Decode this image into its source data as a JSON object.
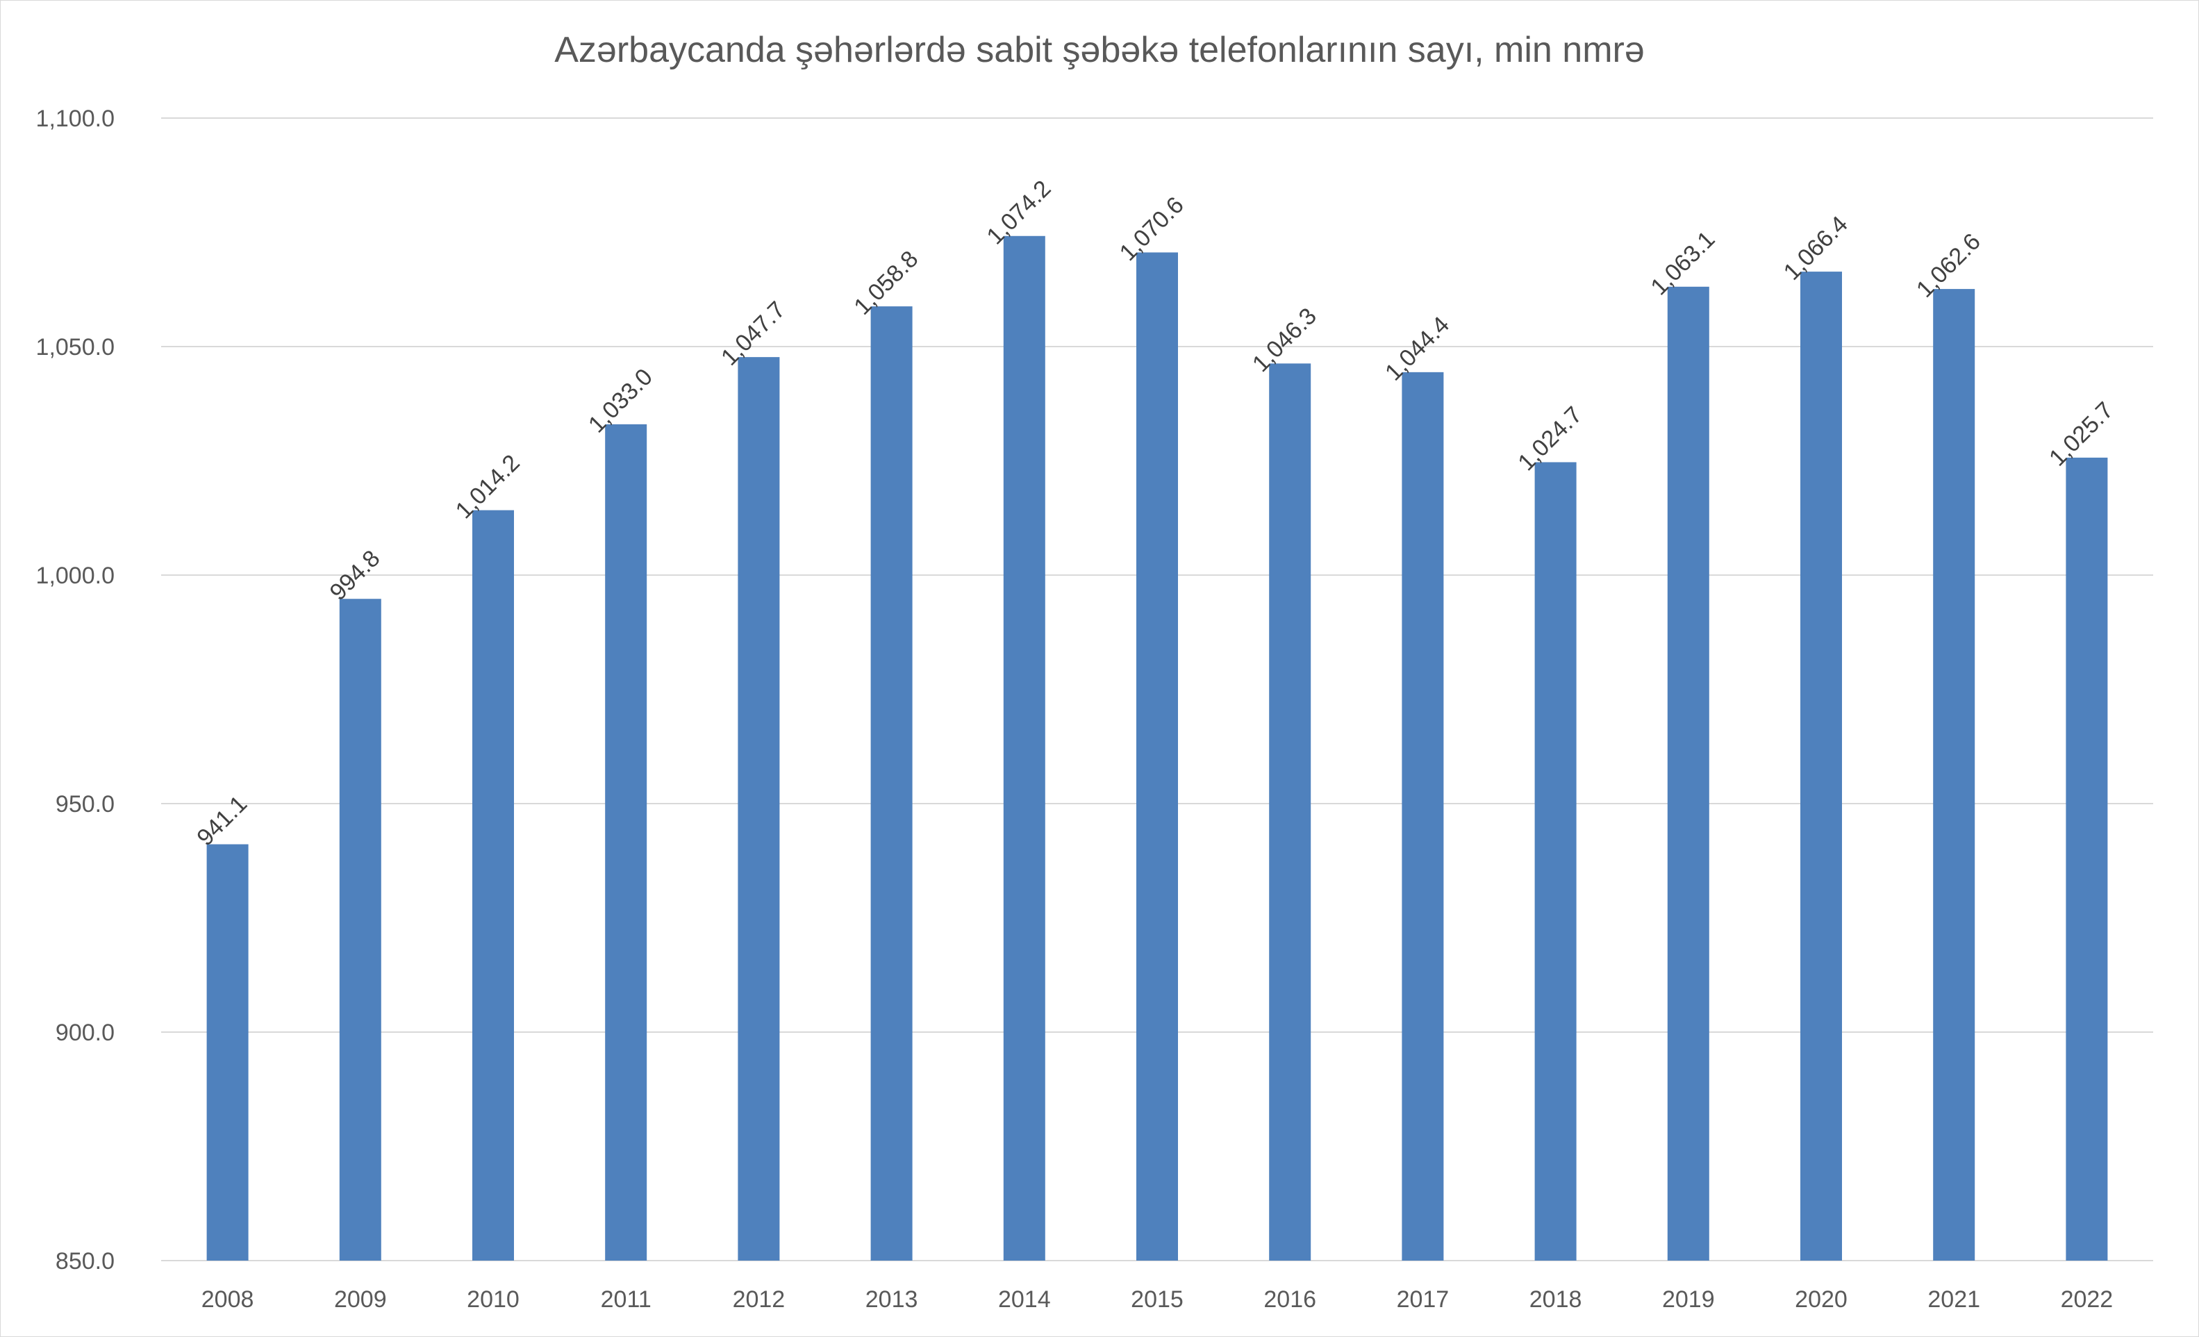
{
  "chart_data": {
    "type": "bar",
    "title": "Azərbaycanda şəhərlərdə sabit şəbəkə telefonlarının sayı, min nmrə",
    "xlabel": "",
    "ylabel": "",
    "ylim": [
      850,
      1100
    ],
    "y_ticks": [
      "850.0",
      "900.0",
      "950.0",
      "1,000.0",
      "1,050.0",
      "1,100.0"
    ],
    "categories": [
      "2008",
      "2009",
      "2010",
      "2011",
      "2012",
      "2013",
      "2014",
      "2015",
      "2016",
      "2017",
      "2018",
      "2019",
      "2020",
      "2021",
      "2022"
    ],
    "values": [
      941.1,
      994.8,
      1014.2,
      1033.0,
      1047.7,
      1058.8,
      1074.2,
      1070.6,
      1046.3,
      1044.4,
      1024.7,
      1063.1,
      1066.4,
      1062.6,
      1025.7
    ],
    "value_labels": [
      "941.1",
      "994.8",
      "1,014.2",
      "1,033.0",
      "1,047.7",
      "1,058.8",
      "1,074.2",
      "1,070.6",
      "1,046.3",
      "1,044.4",
      "1,024.7",
      "1,063.1",
      "1,066.4",
      "1,062.6",
      "1,025.7"
    ],
    "bar_color": "#4f81bd",
    "grid": true,
    "legend": "none"
  }
}
